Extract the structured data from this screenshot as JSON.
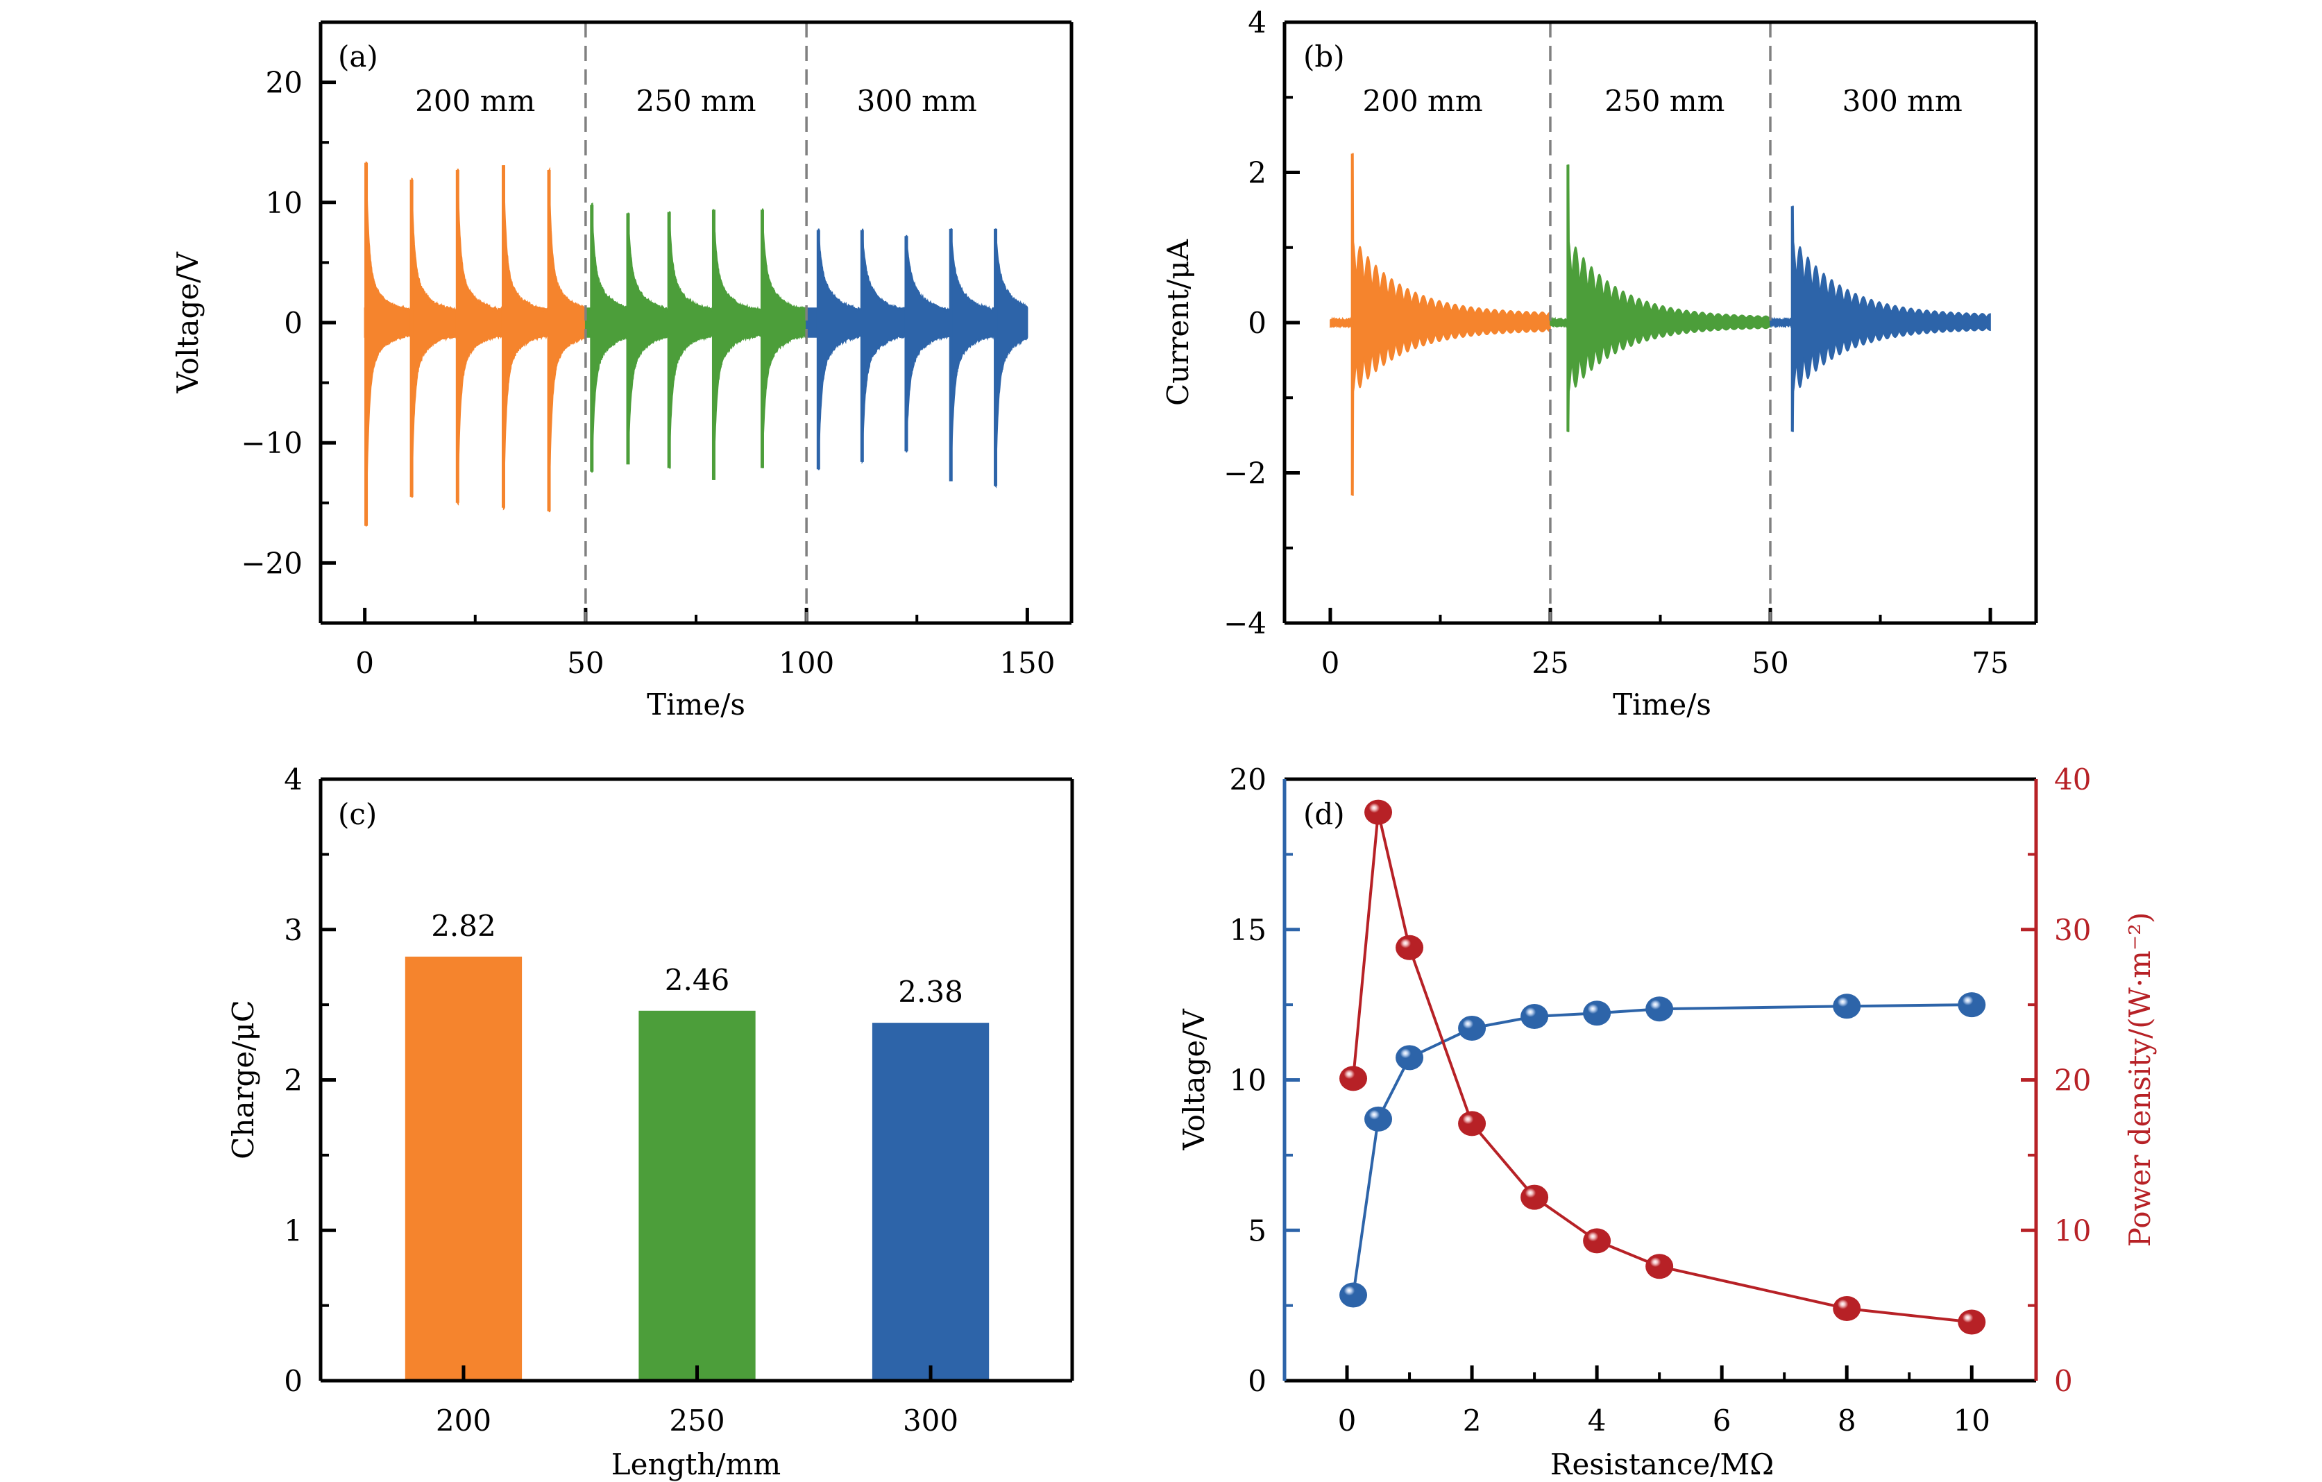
{
  "chart_data": [
    {
      "id": "a",
      "type": "line",
      "panel_label": "(a)",
      "title": "",
      "xlabel": "Time/s",
      "ylabel": "Voltage/V",
      "xlim": [
        -10,
        160
      ],
      "ylim": [
        -25,
        25
      ],
      "xticks": [
        0,
        50,
        100,
        150
      ],
      "xtick_labels": [
        "0",
        "50",
        "100",
        "150"
      ],
      "xminor": [
        25,
        75,
        125
      ],
      "yticks": [
        -20,
        -10,
        0,
        10,
        20
      ],
      "ytick_labels": [
        "−20",
        "−10",
        "0",
        "10",
        "20"
      ],
      "yminor": [
        -15,
        -5,
        5,
        15
      ],
      "dividers": [
        50,
        100
      ],
      "grid": false,
      "region_labels": [
        {
          "text": "200 mm",
          "x": 25
        },
        {
          "text": "250 mm",
          "x": 75
        },
        {
          "text": "300 mm",
          "x": 125
        }
      ],
      "series": [
        {
          "name": "200 mm",
          "color": "#F5842D",
          "t_range": [
            0,
            50
          ],
          "spikes": [
            {
              "t": 0.3,
              "peak": 13.3,
              "trough": -16.9
            },
            {
              "t": 10.6,
              "peak": 11.9,
              "trough": -14.5
            },
            {
              "t": 21.0,
              "peak": 12.7,
              "trough": -15.0
            },
            {
              "t": 31.4,
              "peak": 13.1,
              "trough": -15.4
            },
            {
              "t": 41.7,
              "peak": 12.7,
              "trough": -15.7
            }
          ]
        },
        {
          "name": "250 mm",
          "color": "#4C9E3A",
          "t_range": [
            50,
            100
          ],
          "spikes": [
            {
              "t": 51.4,
              "peak": 9.8,
              "trough": -12.4
            },
            {
              "t": 59.6,
              "peak": 9.1,
              "trough": -11.8
            },
            {
              "t": 68.9,
              "peak": 9.2,
              "trough": -12.1
            },
            {
              "t": 79.0,
              "peak": 9.4,
              "trough": -13.1
            },
            {
              "t": 90.0,
              "peak": 9.4,
              "trough": -12.1
            }
          ]
        },
        {
          "name": "300 mm",
          "color": "#2D64A9",
          "t_range": [
            100,
            150
          ],
          "spikes": [
            {
              "t": 102.7,
              "peak": 7.7,
              "trough": -12.2
            },
            {
              "t": 112.6,
              "peak": 7.7,
              "trough": -11.6
            },
            {
              "t": 122.6,
              "peak": 7.2,
              "trough": -10.7
            },
            {
              "t": 132.7,
              "peak": 7.8,
              "trough": -13.2
            },
            {
              "t": 142.8,
              "peak": 7.8,
              "trough": -13.6
            }
          ]
        }
      ]
    },
    {
      "id": "b",
      "type": "line",
      "panel_label": "(b)",
      "title": "",
      "xlabel": "Time/s",
      "ylabel": "Current/μA",
      "xlim": [
        -5.2,
        80.2
      ],
      "ylim": [
        -4,
        4
      ],
      "xticks": [
        0,
        25,
        50,
        75
      ],
      "xtick_labels": [
        "0",
        "25",
        "50",
        "75"
      ],
      "xminor": [
        12.5,
        37.5,
        62.5
      ],
      "yticks": [
        -4,
        -2,
        0,
        2,
        4
      ],
      "ytick_labels": [
        "−4",
        "−2",
        "0",
        "2",
        "4"
      ],
      "yminor": [
        -3,
        -1,
        1,
        3
      ],
      "dividers": [
        25,
        50
      ],
      "grid": false,
      "region_labels": [
        {
          "text": "200 mm",
          "x": 10.5
        },
        {
          "text": "250 mm",
          "x": 38
        },
        {
          "text": "300 mm",
          "x": 65
        }
      ],
      "series": [
        {
          "name": "200 mm",
          "color": "#F5842D",
          "t_range": [
            0,
            25
          ],
          "spike_t": 2.5,
          "peak": 2.25,
          "trough": -2.3,
          "decay_to": 0.1
        },
        {
          "name": "250 mm",
          "color": "#4C9E3A",
          "t_range": [
            25,
            50
          ],
          "spike_t": 27.0,
          "peak": 2.1,
          "trough": -1.45,
          "decay_to": 0.05
        },
        {
          "name": "300 mm",
          "color": "#2D64A9",
          "t_range": [
            50,
            75
          ],
          "spike_t": 52.5,
          "peak": 1.55,
          "trough": -1.45,
          "decay_to": 0.08
        }
      ]
    },
    {
      "id": "c",
      "type": "bar",
      "panel_label": "(c)",
      "title": "",
      "xlabel": "Length/mm",
      "ylabel": "Charge/μC",
      "categories": [
        "200",
        "250",
        "300"
      ],
      "values": [
        2.82,
        2.46,
        2.38
      ],
      "value_labels": [
        "2.82",
        "2.46",
        "2.38"
      ],
      "colors": [
        "#F5842D",
        "#4C9E3A",
        "#2D64A9"
      ],
      "ylim": [
        0,
        4
      ],
      "yticks": [
        0,
        1,
        2,
        3,
        4
      ],
      "ytick_labels": [
        "0",
        "1",
        "2",
        "3",
        "4"
      ],
      "yminor": [
        0.5,
        1.5,
        2.5,
        3.5
      ],
      "grid": false
    },
    {
      "id": "d",
      "type": "line",
      "panel_label": "(d)",
      "title": "",
      "xlabel": "Resistance/MΩ",
      "ylabel": "Voltage/V",
      "y2label": "Power density/(W·m⁻²)",
      "xlim": [
        -1.0,
        11.03
      ],
      "ylim": [
        0,
        20
      ],
      "y2lim": [
        0,
        40
      ],
      "xticks": [
        0,
        2,
        4,
        6,
        8,
        10
      ],
      "xtick_labels": [
        "0",
        "2",
        "4",
        "6",
        "8",
        "10"
      ],
      "xminor": [
        1,
        3,
        5,
        7,
        9
      ],
      "yticks": [
        0,
        5,
        10,
        15,
        20
      ],
      "ytick_labels": [
        "0",
        "5",
        "10",
        "15",
        "20"
      ],
      "yminor": [
        2.5,
        7.5,
        12.5,
        17.5
      ],
      "y2ticks": [
        0,
        10,
        20,
        30,
        40
      ],
      "y2tick_labels": [
        "0",
        "10",
        "20",
        "30",
        "40"
      ],
      "y2minor": [
        5,
        15,
        25,
        35
      ],
      "grid": false,
      "series": [
        {
          "name": "Voltage",
          "axis": "left",
          "color": "#2D64A9",
          "x": [
            0.1,
            0.5,
            1,
            2,
            3,
            4,
            5,
            8,
            10
          ],
          "y": [
            2.85,
            8.7,
            10.74,
            11.72,
            12.11,
            12.22,
            12.36,
            12.45,
            12.5
          ]
        },
        {
          "name": "Power density",
          "axis": "right",
          "color": "#B72126",
          "x": [
            0.1,
            0.5,
            1,
            2,
            3,
            4,
            5,
            8,
            10
          ],
          "y": [
            20.1,
            37.8,
            28.8,
            17.1,
            12.2,
            9.3,
            7.6,
            4.8,
            3.9
          ]
        }
      ]
    }
  ],
  "colors": {
    "divider": "#808080",
    "axis": "#000000",
    "left_axis_d": "#2D64A9",
    "right_axis_d": "#B72126"
  }
}
